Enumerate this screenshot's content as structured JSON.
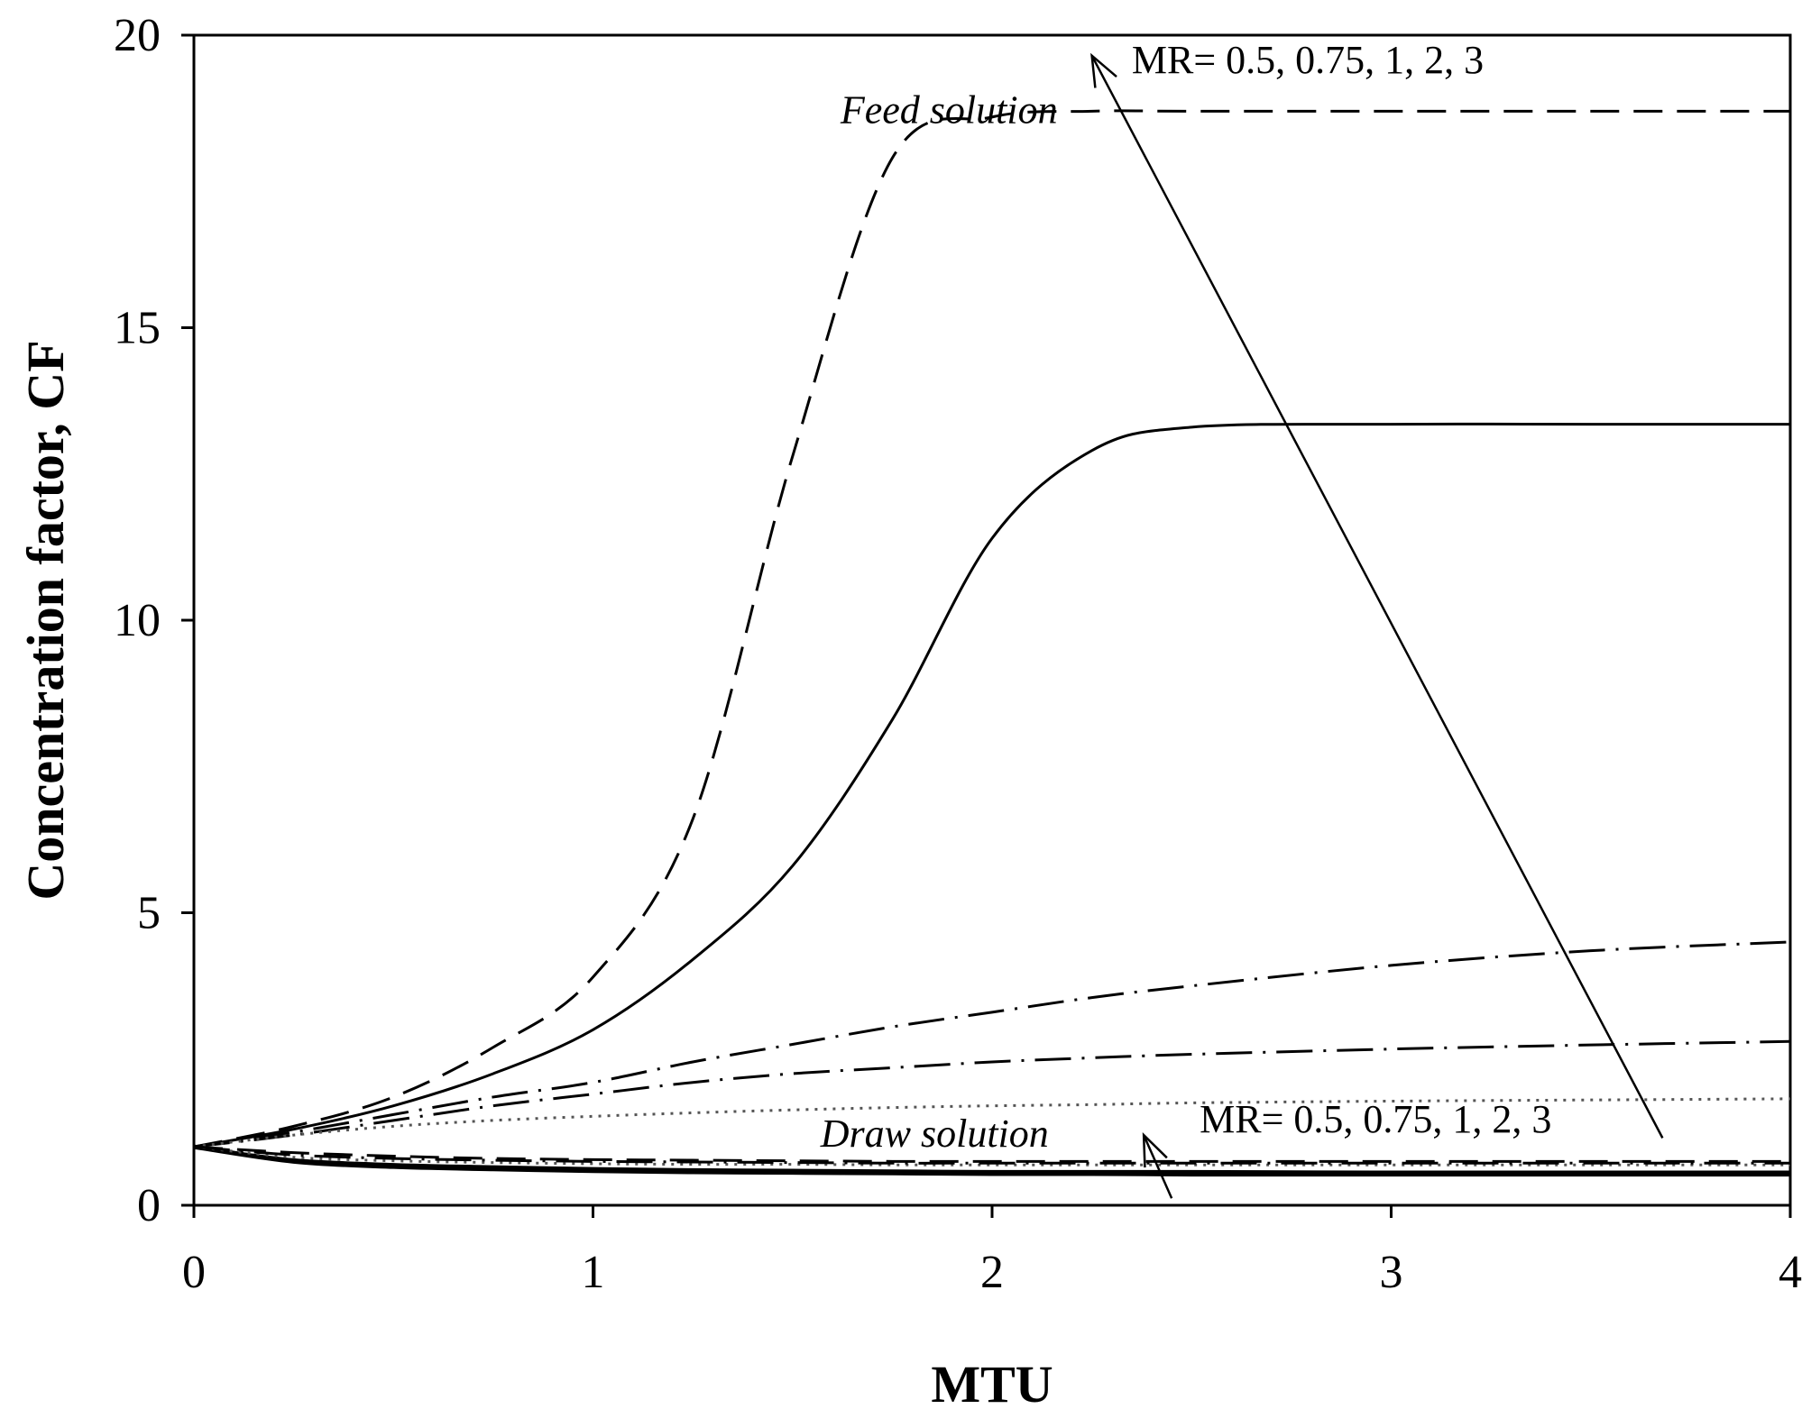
{
  "chart_data": {
    "type": "line",
    "title": "",
    "xlabel": "MTU",
    "ylabel": "Concentration factor, CF",
    "xlim": [
      0,
      4
    ],
    "ylim": [
      0,
      20
    ],
    "xticks": [
      "0",
      "1",
      "2",
      "3",
      "4"
    ],
    "yticks": [
      "0",
      "5",
      "10",
      "15",
      "20"
    ],
    "grid": false,
    "colors": {
      "line": "#000000",
      "background": "#ffffff",
      "light": "#555555"
    },
    "x": [
      0,
      0.25,
      0.5,
      0.75,
      1.0,
      1.25,
      1.5,
      1.75,
      2.0,
      2.25,
      2.5,
      3.0,
      3.5,
      4.0
    ],
    "series": [
      {
        "name": "Feed MR=0.5",
        "group": "feed",
        "style": "long-dash",
        "values": [
          1.0,
          1.35,
          1.85,
          2.7,
          3.9,
          6.6,
          12.8,
          17.9,
          18.6,
          18.7,
          18.7,
          18.7,
          18.7,
          18.7
        ]
      },
      {
        "name": "Feed MR=0.75",
        "group": "feed",
        "style": "solid",
        "values": [
          1.0,
          1.3,
          1.7,
          2.25,
          3.0,
          4.2,
          5.8,
          8.3,
          11.4,
          12.9,
          13.3,
          13.35,
          13.35,
          13.35
        ]
      },
      {
        "name": "Feed MR=1",
        "group": "feed",
        "style": "dash-dot",
        "values": [
          1.0,
          1.25,
          1.55,
          1.85,
          2.1,
          2.45,
          2.75,
          3.05,
          3.3,
          3.55,
          3.75,
          4.1,
          4.35,
          4.5
        ]
      },
      {
        "name": "Feed MR=2",
        "group": "feed",
        "style": "dash-dot",
        "values": [
          1.0,
          1.2,
          1.45,
          1.7,
          1.9,
          2.1,
          2.25,
          2.35,
          2.45,
          2.52,
          2.58,
          2.67,
          2.74,
          2.8
        ]
      },
      {
        "name": "Feed MR=3",
        "group": "feed",
        "style": "dotted",
        "values": [
          1.0,
          1.2,
          1.35,
          1.45,
          1.52,
          1.58,
          1.63,
          1.67,
          1.7,
          1.72,
          1.75,
          1.78,
          1.8,
          1.82
        ]
      },
      {
        "name": "Draw MR=0.5",
        "group": "draw",
        "style": "solid-bold",
        "values": [
          1.0,
          0.75,
          0.66,
          0.62,
          0.59,
          0.57,
          0.56,
          0.55,
          0.54,
          0.54,
          0.53,
          0.53,
          0.53,
          0.53
        ]
      },
      {
        "name": "Draw MR=0.75",
        "group": "draw",
        "style": "solid",
        "values": [
          1.0,
          0.78,
          0.7,
          0.66,
          0.63,
          0.61,
          0.6,
          0.59,
          0.58,
          0.58,
          0.58,
          0.57,
          0.57,
          0.57
        ]
      },
      {
        "name": "Draw MR=1",
        "group": "draw",
        "style": "dotted",
        "values": [
          1.0,
          0.82,
          0.76,
          0.73,
          0.71,
          0.7,
          0.7,
          0.69,
          0.69,
          0.69,
          0.69,
          0.69,
          0.69,
          0.69
        ]
      },
      {
        "name": "Draw MR=2",
        "group": "draw",
        "style": "dash-dot",
        "values": [
          1.0,
          0.86,
          0.8,
          0.77,
          0.75,
          0.74,
          0.73,
          0.72,
          0.72,
          0.72,
          0.72,
          0.72,
          0.72,
          0.72
        ]
      },
      {
        "name": "Draw MR=3",
        "group": "draw",
        "style": "long-dash",
        "values": [
          1.0,
          0.9,
          0.84,
          0.8,
          0.78,
          0.77,
          0.76,
          0.75,
          0.75,
          0.75,
          0.75,
          0.75,
          0.75,
          0.75
        ]
      }
    ],
    "annotations": [
      {
        "id": "feed-label",
        "text": "Feed solution",
        "x": 1.62,
        "y": 18.5,
        "italic": true
      },
      {
        "id": "feed-mr",
        "text": "MR= 0.5, 0.75, 1, 2, 3",
        "x": 2.35,
        "y": 19.35,
        "italic": false
      },
      {
        "id": "draw-label",
        "text": "Draw solution",
        "x": 1.57,
        "y": 1.0,
        "italic": true
      },
      {
        "id": "draw-mr",
        "text": "MR= 0.5, 0.75, 1, 2, 3",
        "x": 2.52,
        "y": 1.25,
        "italic": false
      }
    ],
    "arrows": [
      {
        "id": "feed-arrow",
        "from": [
          3.68,
          1.15
        ],
        "to": [
          2.25,
          19.65
        ]
      },
      {
        "id": "draw-arrow",
        "from": [
          2.45,
          0.12
        ],
        "to": [
          2.38,
          1.2
        ]
      }
    ]
  }
}
